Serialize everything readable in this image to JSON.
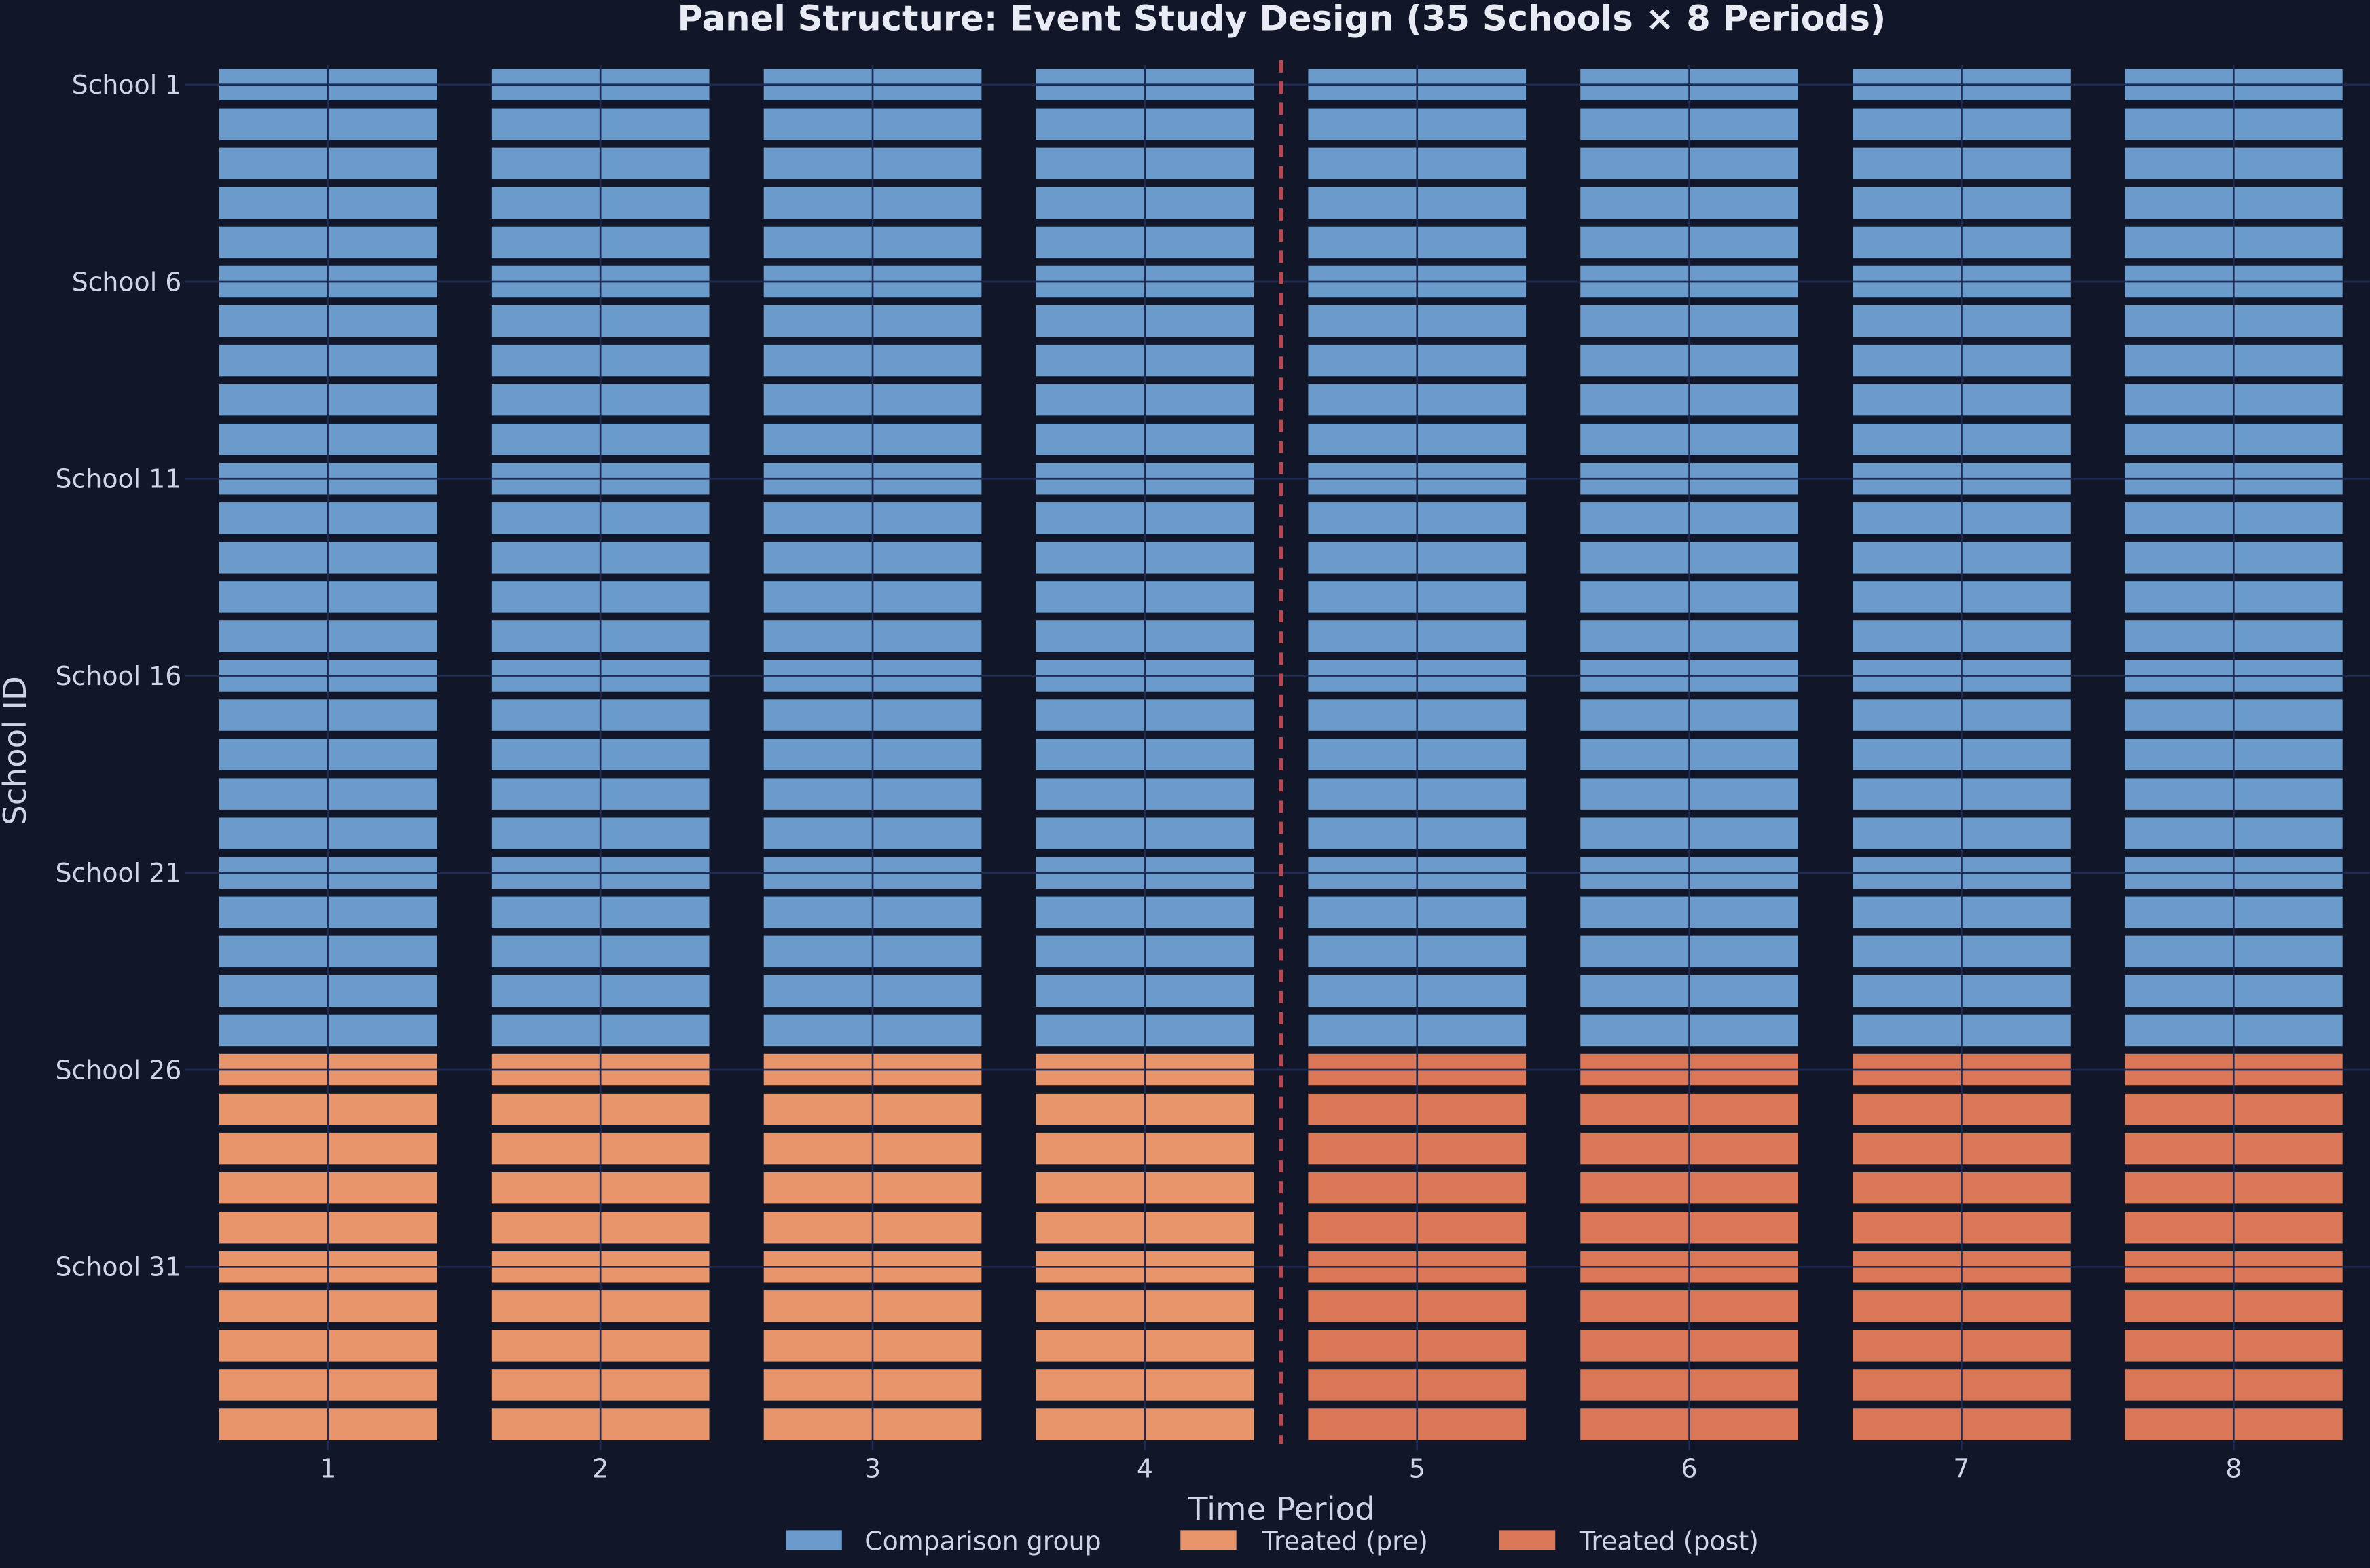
{
  "chart_data": {
    "type": "heatmap",
    "title": "Panel Structure: Event Study Design (35 Schools × 8 Periods)",
    "xlabel": "Time Period",
    "ylabel": "School ID",
    "x": [
      1,
      2,
      3,
      4,
      5,
      6,
      7,
      8
    ],
    "x_tick_labels": [
      "1",
      "2",
      "3",
      "4",
      "5",
      "6",
      "7",
      "8"
    ],
    "schools": [
      "School 1",
      "School 2",
      "School 3",
      "School 4",
      "School 5",
      "School 6",
      "School 7",
      "School 8",
      "School 9",
      "School 10",
      "School 11",
      "School 12",
      "School 13",
      "School 14",
      "School 15",
      "School 16",
      "School 17",
      "School 18",
      "School 19",
      "School 20",
      "School 21",
      "School 22",
      "School 23",
      "School 24",
      "School 25",
      "School 26",
      "School 27",
      "School 28",
      "School 29",
      "School 30",
      "School 31",
      "School 32",
      "School 33",
      "School 34",
      "School 35"
    ],
    "y_tick_labels": [
      "School 1",
      "School 6",
      "School 11",
      "School 16",
      "School 21",
      "School 26",
      "School 31"
    ],
    "comparison_schools": [
      1,
      25
    ],
    "treated_schools": [
      26,
      35
    ],
    "treatment_line_at": 4.5,
    "xlim": [
      0.5,
      8.5
    ],
    "grid": true,
    "legend_position": "bottom",
    "legend": [
      {
        "label": "Comparison group",
        "color": "#6a9bcb"
      },
      {
        "label": "Treated (pre)",
        "color": "#e8956b"
      },
      {
        "label": "Treated (post)",
        "color": "#d97757"
      }
    ],
    "treatment_line_color": "#c0454f",
    "background": "#111729",
    "grid_color": "#1f2b55"
  }
}
